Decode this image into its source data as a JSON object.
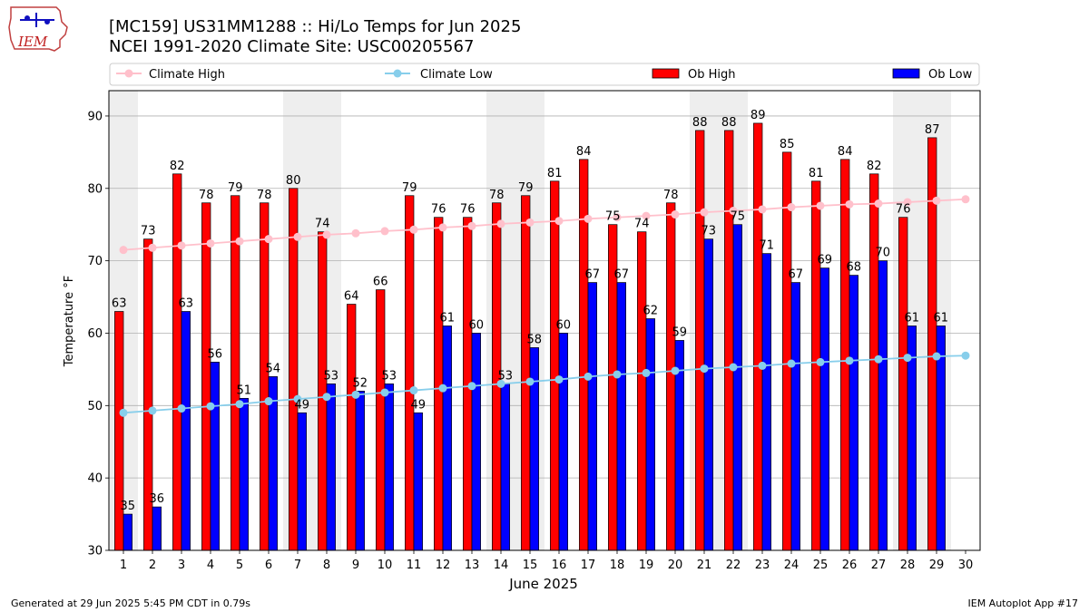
{
  "header": {
    "title_line1": "[MC159] US31MM1288  :: Hi/Lo Temps for Jun 2025",
    "title_line2": "NCEI 1991-2020 Climate Site: USC00205567",
    "logo_text": "IEM"
  },
  "footer": {
    "left": "Generated at 29 Jun 2025 5:45 PM CDT in 0.79s",
    "right": "IEM Autoplot App #17"
  },
  "colors": {
    "ob_high": "#ff0000",
    "ob_low": "#0000ff",
    "climate_high": "#ffc0cb",
    "climate_low": "#87ceeb",
    "weekend_shade": "#eeeeee",
    "grid": "#b0b0b0"
  },
  "chart_data": {
    "type": "bar",
    "xlabel": "June 2025",
    "ylabel": "Temperature °F",
    "ylim": [
      30,
      93.5
    ],
    "y_ticks": [
      30,
      40,
      50,
      60,
      70,
      80,
      90
    ],
    "grid": "horizontal",
    "legend_placement": "top",
    "legend": [
      "Climate High",
      "Climate Low",
      "Ob High",
      "Ob Low"
    ],
    "x": [
      1,
      2,
      3,
      4,
      5,
      6,
      7,
      8,
      9,
      10,
      11,
      12,
      13,
      14,
      15,
      16,
      17,
      18,
      19,
      20,
      21,
      22,
      23,
      24,
      25,
      26,
      27,
      28,
      29,
      30
    ],
    "weekend_days": [
      1,
      7,
      8,
      14,
      15,
      21,
      22,
      28,
      29
    ],
    "series": [
      {
        "name": "Ob High",
        "kind": "bar",
        "values": [
          63,
          73,
          82,
          78,
          79,
          78,
          80,
          74,
          64,
          66,
          79,
          76,
          76,
          78,
          79,
          81,
          84,
          75,
          74,
          78,
          88,
          88,
          89,
          85,
          81,
          84,
          82,
          76,
          87,
          null
        ]
      },
      {
        "name": "Ob Low",
        "kind": "bar",
        "values": [
          35,
          36,
          63,
          56,
          51,
          54,
          49,
          53,
          52,
          53,
          49,
          61,
          60,
          53,
          58,
          60,
          67,
          67,
          62,
          59,
          73,
          75,
          71,
          67,
          69,
          68,
          70,
          61,
          61,
          null
        ]
      },
      {
        "name": "Climate High",
        "kind": "line",
        "values": [
          71.5,
          71.8,
          72.1,
          72.4,
          72.7,
          73.0,
          73.3,
          73.6,
          73.8,
          74.1,
          74.3,
          74.6,
          74.8,
          75.1,
          75.3,
          75.5,
          75.8,
          76.0,
          76.2,
          76.4,
          76.7,
          76.9,
          77.1,
          77.4,
          77.6,
          77.8,
          77.9,
          78.1,
          78.3,
          78.5
        ]
      },
      {
        "name": "Climate Low",
        "kind": "line",
        "values": [
          49.0,
          49.3,
          49.6,
          49.9,
          50.2,
          50.6,
          50.9,
          51.2,
          51.5,
          51.8,
          52.1,
          52.4,
          52.7,
          53.0,
          53.3,
          53.6,
          54.0,
          54.3,
          54.5,
          54.8,
          55.1,
          55.3,
          55.5,
          55.8,
          56.0,
          56.2,
          56.4,
          56.6,
          56.8,
          56.9
        ]
      }
    ]
  }
}
